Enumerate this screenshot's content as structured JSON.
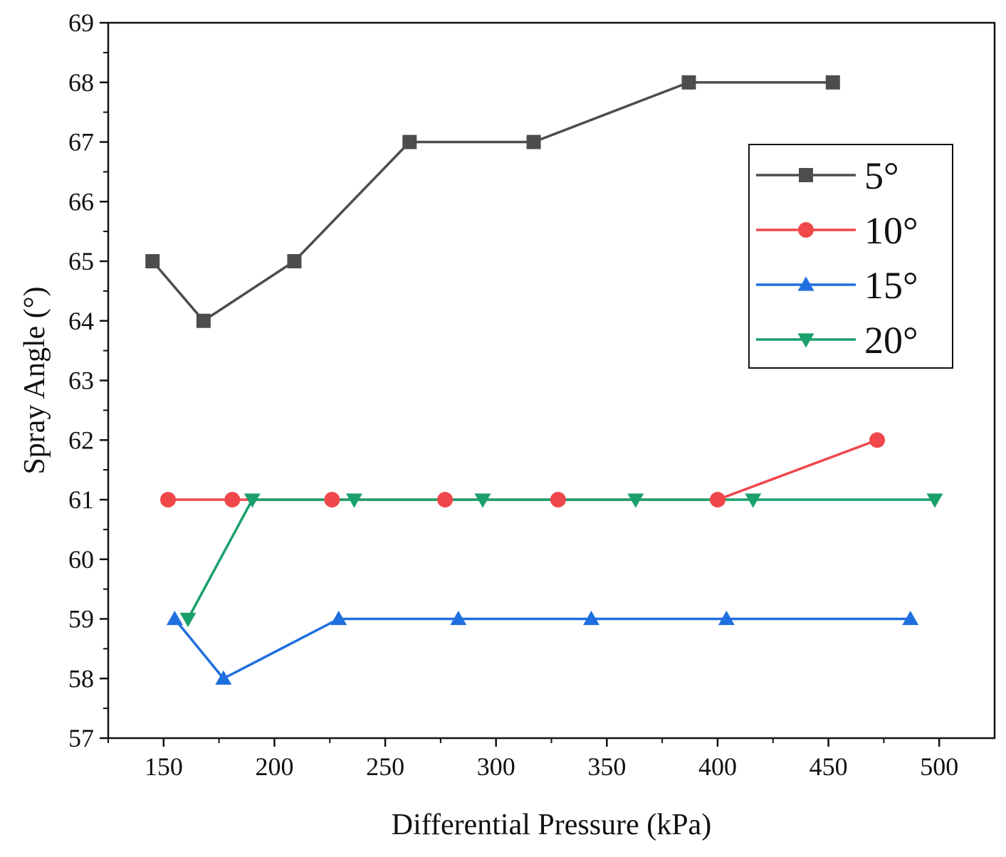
{
  "chart_data": {
    "type": "line",
    "title": "",
    "xlabel": "Differential Pressure (kPa)",
    "ylabel": "Spray Angle (°)",
    "xlim": [
      125,
      525
    ],
    "ylim": [
      57,
      69
    ],
    "xticks": [
      150,
      200,
      250,
      300,
      350,
      400,
      450,
      500
    ],
    "yticks": [
      57,
      58,
      59,
      60,
      61,
      62,
      63,
      64,
      65,
      66,
      67,
      68,
      69
    ],
    "grid": false,
    "legend_position": "upper-right",
    "series": [
      {
        "name": "5°",
        "color": "#4d4d4d",
        "marker": "square",
        "x": [
          145,
          168,
          209,
          261,
          317,
          387,
          452
        ],
        "y": [
          65,
          64,
          65,
          67,
          67,
          68,
          68
        ]
      },
      {
        "name": "10°",
        "color": "#f0474a",
        "marker": "circle",
        "x": [
          152,
          181,
          226,
          277,
          328,
          400,
          472
        ],
        "y": [
          61,
          61,
          61,
          61,
          61,
          61,
          62
        ]
      },
      {
        "name": "15°",
        "color": "#1f6fe0",
        "marker": "triangle-up",
        "x": [
          155,
          177,
          229,
          283,
          343,
          404,
          487
        ],
        "y": [
          59,
          58,
          59,
          59,
          59,
          59,
          59
        ]
      },
      {
        "name": "20°",
        "color": "#1aa06b",
        "marker": "triangle-down",
        "x": [
          161,
          190,
          236,
          294,
          363,
          416,
          498
        ],
        "y": [
          59,
          61,
          61,
          61,
          61,
          61,
          61
        ]
      }
    ]
  }
}
